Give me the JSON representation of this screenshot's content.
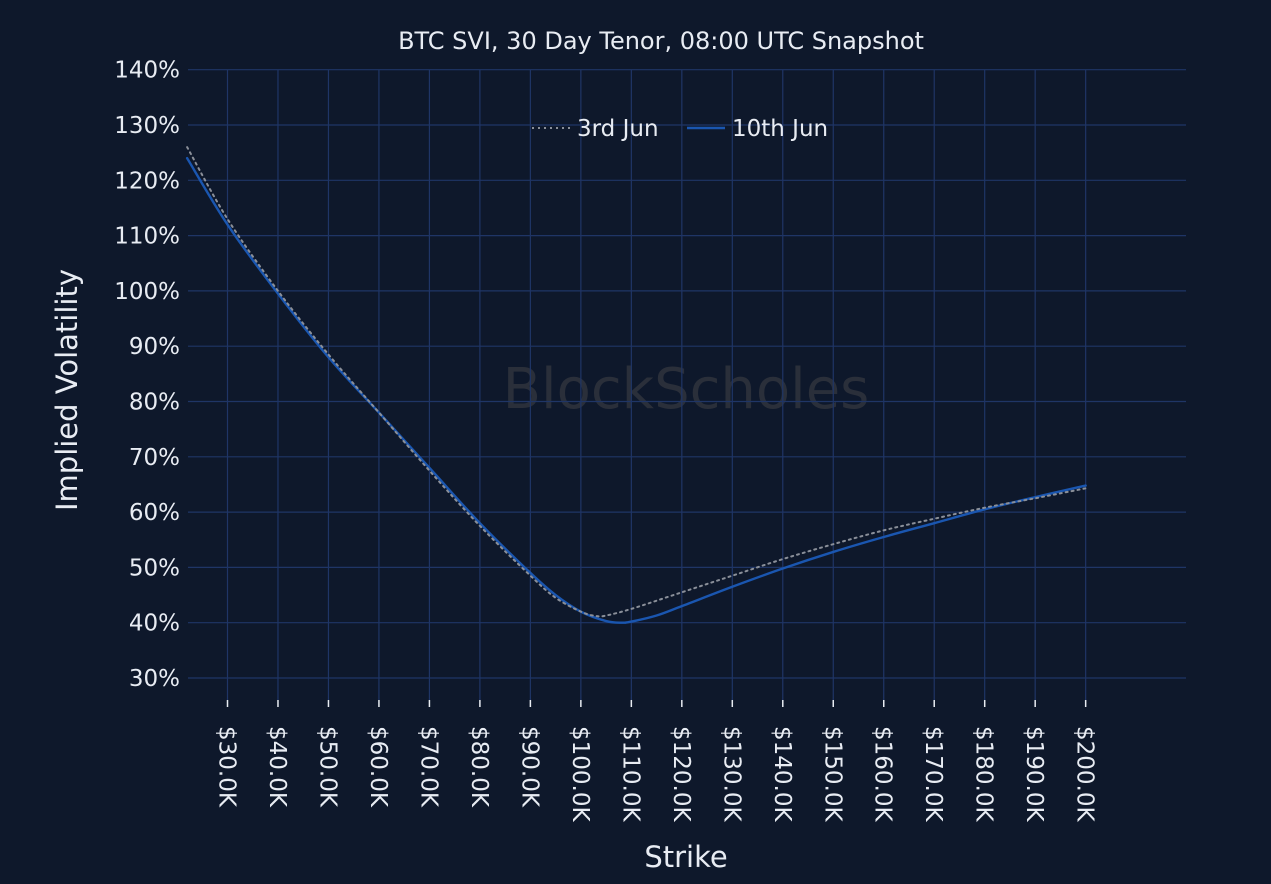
{
  "chart_data": {
    "type": "line",
    "title": "BTC SVI, 30 Day Tenor, 08:00 UTC Snapshot",
    "xlabel": "Strike",
    "ylabel": "Implied Volatility",
    "watermark": "BlockScholes",
    "x_unit": "USD thousands",
    "xlim": [
      22,
      210
    ],
    "ylim": [
      25,
      140
    ],
    "x_ticks": [
      30,
      40,
      50,
      60,
      70,
      80,
      90,
      100,
      110,
      120,
      130,
      140,
      150,
      160,
      170,
      180,
      190,
      200
    ],
    "x_tick_labels": [
      "$30.0K",
      "$40.0K",
      "$50.0K",
      "$60.0K",
      "$70.0K",
      "$80.0K",
      "$90.0K",
      "$100.0K",
      "$110.0K",
      "$120.0K",
      "$130.0K",
      "$140.0K",
      "$150.0K",
      "$160.0K",
      "$170.0K",
      "$180.0K",
      "$190.0K",
      "$200.0K"
    ],
    "y_ticks": [
      30,
      40,
      50,
      60,
      70,
      80,
      90,
      100,
      110,
      120,
      130,
      140
    ],
    "y_tick_labels": [
      "30%",
      "40%",
      "50%",
      "60%",
      "70%",
      "80%",
      "90%",
      "100%",
      "110%",
      "120%",
      "130%",
      "140%"
    ],
    "grid": true,
    "legend": {
      "placement": "top-center"
    },
    "series": [
      {
        "name": "3rd Jun",
        "style": "dotted",
        "color": "#8a8f99",
        "x": [
          22,
          30,
          40,
          50,
          60,
          70,
          80,
          90,
          95,
          100,
          103,
          105,
          110,
          120,
          130,
          140,
          150,
          160,
          170,
          180,
          190,
          200
        ],
        "y": [
          126,
          113,
          100,
          88.5,
          78,
          67.5,
          57.5,
          48.5,
          44.5,
          42,
          41.2,
          41.3,
          42.5,
          45.5,
          48.5,
          51.5,
          54.2,
          56.7,
          58.8,
          60.8,
          62.5,
          64.3
        ]
      },
      {
        "name": "10th Jun",
        "style": "solid",
        "color": "#1a56b0",
        "x": [
          22,
          30,
          40,
          50,
          60,
          70,
          80,
          90,
          95,
          100,
          105,
          108,
          110,
          115,
          120,
          130,
          140,
          150,
          160,
          170,
          180,
          190,
          200
        ],
        "y": [
          124,
          112,
          99.5,
          88,
          78,
          68,
          58,
          49,
          45,
          42,
          40.3,
          40,
          40.2,
          41.3,
          43,
          46.5,
          49.8,
          52.8,
          55.5,
          58,
          60.5,
          62.7,
          64.8
        ]
      }
    ]
  }
}
